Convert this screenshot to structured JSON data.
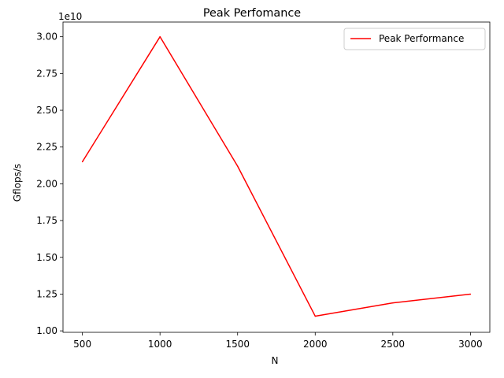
{
  "chart_data": {
    "type": "line",
    "title": "Peak Perfomance",
    "xlabel": "N",
    "ylabel": "Gflops/s",
    "offset_text": "1e10",
    "x_ticks": [
      "500",
      "1000",
      "1500",
      "2000",
      "2500",
      "3000"
    ],
    "y_ticks": [
      "1.00",
      "1.25",
      "1.50",
      "1.75",
      "2.00",
      "2.25",
      "2.50",
      "2.75",
      "3.00"
    ],
    "xlim": [
      375,
      3125
    ],
    "ylim": [
      0.99,
      3.1
    ],
    "grid": false,
    "legend_position": "top-right",
    "series": [
      {
        "name": "Peak Performance",
        "color": "#ff0000",
        "x": [
          500,
          1000,
          1500,
          2000,
          2500,
          3000
        ],
        "y": [
          2.15,
          3.0,
          2.12,
          1.1,
          1.19,
          1.25
        ]
      }
    ]
  }
}
